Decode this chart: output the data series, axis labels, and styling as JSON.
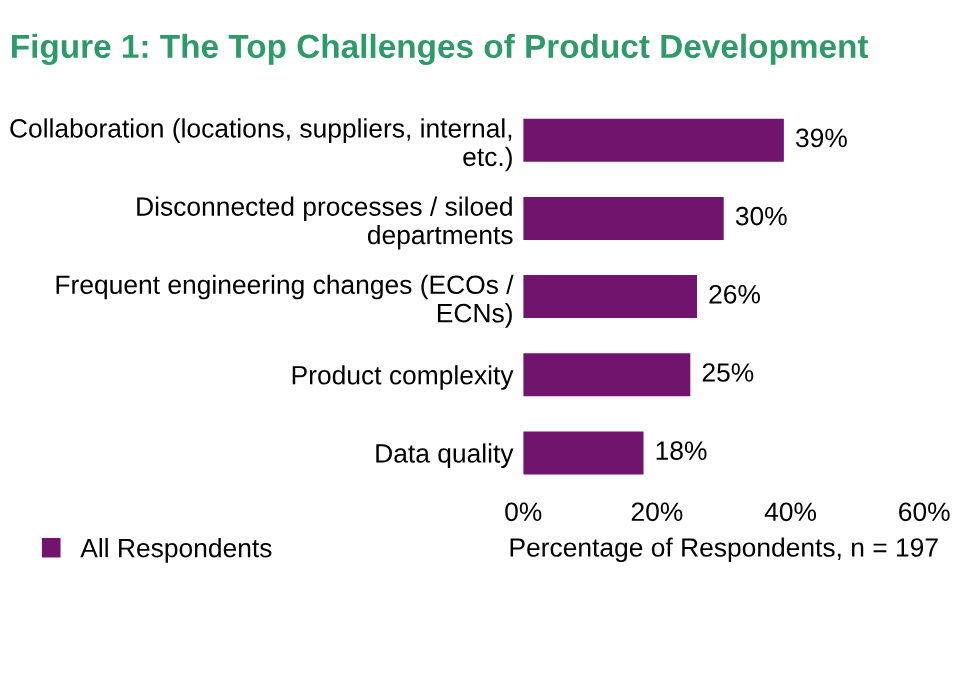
{
  "chart_data": {
    "type": "bar",
    "orientation": "horizontal",
    "title": "Figure 1: The Top Challenges of Product Development",
    "categories": [
      "Collaboration (locations, suppliers, internal, etc.)",
      "Disconnected processes / siloed departments",
      "Frequent engineering changes (ECOs / ECNs)",
      "Product complexity",
      "Data quality"
    ],
    "series": [
      {
        "name": "All Respondents",
        "color": "#70146e",
        "values": [
          39,
          30,
          26,
          25,
          18
        ],
        "value_labels": [
          "39%",
          "30%",
          "26%",
          "25%",
          "18%"
        ]
      }
    ],
    "xlim": [
      0,
      60
    ],
    "xticks": [
      {
        "value": 0,
        "label": "0%"
      },
      {
        "value": 20,
        "label": "20%"
      },
      {
        "value": 40,
        "label": "40%"
      },
      {
        "value": 60,
        "label": "60%"
      }
    ],
    "xlabel": "Percentage of Respondents, n = 197",
    "grid": false,
    "legend": "bottom left"
  }
}
